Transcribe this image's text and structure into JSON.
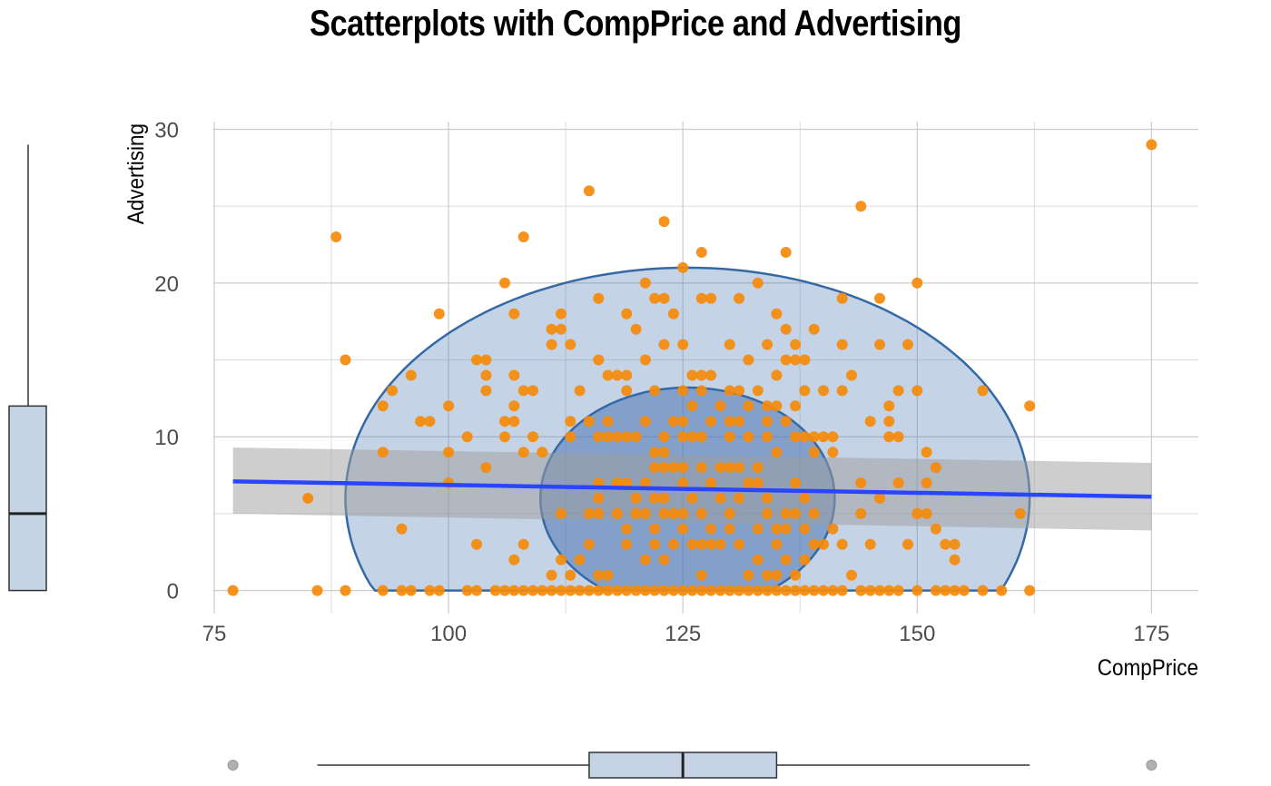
{
  "chart_data": {
    "type": "scatter",
    "title": "Scatterplots with CompPrice and Advertising",
    "xlabel": "CompPrice",
    "ylabel": "Advertising",
    "xlim": [
      72,
      180
    ],
    "ylim": [
      -1.5,
      30.5
    ],
    "xticks": [
      75,
      100,
      125,
      150,
      175
    ],
    "yticks": [
      0,
      10,
      20,
      30
    ],
    "grid": true,
    "colors": {
      "points": "#f58a0b",
      "regression_line": "#2a45ff",
      "confidence_band": "#9e9e9e",
      "ellipse_fill": "#4a77b2",
      "ellipse_stroke": "#3569a6",
      "boxplot_fill": "#c5d3e5"
    },
    "regression": {
      "x": [
        77,
        175
      ],
      "y": [
        7.1,
        6.1
      ],
      "band_lower": [
        5.0,
        3.9
      ],
      "band_upper": [
        9.3,
        8.3
      ]
    },
    "ellipse_outer": {
      "cx": 125.5,
      "cy": 6,
      "rx": 36.5,
      "ry": 15,
      "clip_min": 0
    },
    "ellipse_inner": {
      "cx": 125.5,
      "cy": 6,
      "rx": 15.7,
      "ry": 7.2,
      "clip_min": 0
    },
    "boxplot_x": {
      "min": 86,
      "q1": 115,
      "median": 125,
      "q3": 135,
      "max": 162,
      "outliers": [
        77,
        175
      ]
    },
    "boxplot_y": {
      "min": 0,
      "q1": 0,
      "median": 5,
      "q3": 12,
      "max": 29
    },
    "points": [
      [
        77,
        0
      ],
      [
        86,
        0
      ],
      [
        89,
        0
      ],
      [
        93,
        0
      ],
      [
        95,
        0
      ],
      [
        96,
        0
      ],
      [
        98,
        0
      ],
      [
        99,
        0
      ],
      [
        102,
        0
      ],
      [
        103,
        0
      ],
      [
        105,
        0
      ],
      [
        106,
        0
      ],
      [
        107,
        0
      ],
      [
        108,
        0
      ],
      [
        109,
        0
      ],
      [
        110,
        0
      ],
      [
        111,
        0
      ],
      [
        112,
        0
      ],
      [
        113,
        0
      ],
      [
        114,
        0
      ],
      [
        115,
        0
      ],
      [
        116,
        0
      ],
      [
        117,
        0
      ],
      [
        118,
        0
      ],
      [
        119,
        0
      ],
      [
        120,
        0
      ],
      [
        121,
        0
      ],
      [
        122,
        0
      ],
      [
        123,
        0
      ],
      [
        124,
        0
      ],
      [
        125,
        0
      ],
      [
        126,
        0
      ],
      [
        127,
        0
      ],
      [
        128,
        0
      ],
      [
        129,
        0
      ],
      [
        130,
        0
      ],
      [
        131,
        0
      ],
      [
        132,
        0
      ],
      [
        133,
        0
      ],
      [
        134,
        0
      ],
      [
        135,
        0
      ],
      [
        136,
        0
      ],
      [
        137,
        0
      ],
      [
        138,
        0
      ],
      [
        139,
        0
      ],
      [
        140,
        0
      ],
      [
        141,
        0
      ],
      [
        142,
        0
      ],
      [
        144,
        0
      ],
      [
        145,
        0
      ],
      [
        146,
        0
      ],
      [
        147,
        0
      ],
      [
        148,
        0
      ],
      [
        150,
        0
      ],
      [
        152,
        0
      ],
      [
        153,
        0
      ],
      [
        154,
        0
      ],
      [
        155,
        0
      ],
      [
        157,
        0
      ],
      [
        159,
        0
      ],
      [
        162,
        0
      ],
      [
        85,
        6
      ],
      [
        88,
        23
      ],
      [
        89,
        15
      ],
      [
        93,
        12
      ],
      [
        93,
        9
      ],
      [
        94,
        13
      ],
      [
        95,
        4
      ],
      [
        96,
        14
      ],
      [
        97,
        11
      ],
      [
        98,
        11
      ],
      [
        99,
        18
      ],
      [
        100,
        12
      ],
      [
        100,
        9
      ],
      [
        100,
        7
      ],
      [
        102,
        10
      ],
      [
        103,
        15
      ],
      [
        103,
        3
      ],
      [
        104,
        15
      ],
      [
        104,
        14
      ],
      [
        104,
        13
      ],
      [
        104,
        8
      ],
      [
        106,
        20
      ],
      [
        106,
        11
      ],
      [
        106,
        10
      ],
      [
        107,
        18
      ],
      [
        107,
        14
      ],
      [
        107,
        12
      ],
      [
        107,
        11
      ],
      [
        107,
        2
      ],
      [
        108,
        23
      ],
      [
        108,
        13
      ],
      [
        108,
        9
      ],
      [
        108,
        3
      ],
      [
        109,
        13
      ],
      [
        109,
        10
      ],
      [
        110,
        9
      ],
      [
        111,
        17
      ],
      [
        111,
        16
      ],
      [
        111,
        1
      ],
      [
        112,
        18
      ],
      [
        112,
        17
      ],
      [
        112,
        5
      ],
      [
        112,
        2
      ],
      [
        113,
        16
      ],
      [
        113,
        11
      ],
      [
        113,
        10
      ],
      [
        113,
        1
      ],
      [
        114,
        13
      ],
      [
        114,
        2
      ],
      [
        115,
        26
      ],
      [
        115,
        11
      ],
      [
        115,
        5
      ],
      [
        115,
        3
      ],
      [
        116,
        19
      ],
      [
        116,
        15
      ],
      [
        116,
        10
      ],
      [
        116,
        7
      ],
      [
        116,
        6
      ],
      [
        116,
        5
      ],
      [
        116,
        1
      ],
      [
        117,
        14
      ],
      [
        117,
        11
      ],
      [
        117,
        10
      ],
      [
        117,
        1
      ],
      [
        118,
        14
      ],
      [
        118,
        10
      ],
      [
        118,
        7
      ],
      [
        118,
        5
      ],
      [
        119,
        18
      ],
      [
        119,
        14
      ],
      [
        119,
        13
      ],
      [
        119,
        10
      ],
      [
        119,
        7
      ],
      [
        119,
        4
      ],
      [
        119,
        3
      ],
      [
        120,
        17
      ],
      [
        120,
        10
      ],
      [
        120,
        6
      ],
      [
        120,
        5
      ],
      [
        121,
        20
      ],
      [
        121,
        15
      ],
      [
        121,
        11
      ],
      [
        121,
        7
      ],
      [
        121,
        5
      ],
      [
        121,
        2
      ],
      [
        122,
        19
      ],
      [
        122,
        13
      ],
      [
        122,
        9
      ],
      [
        122,
        8
      ],
      [
        122,
        6
      ],
      [
        122,
        4
      ],
      [
        122,
        3
      ],
      [
        123,
        24
      ],
      [
        123,
        19
      ],
      [
        123,
        16
      ],
      [
        123,
        10
      ],
      [
        123,
        9
      ],
      [
        123,
        8
      ],
      [
        123,
        6
      ],
      [
        123,
        5
      ],
      [
        123,
        2
      ],
      [
        124,
        18
      ],
      [
        124,
        11
      ],
      [
        124,
        8
      ],
      [
        124,
        5
      ],
      [
        124,
        3
      ],
      [
        125,
        21
      ],
      [
        125,
        16
      ],
      [
        125,
        13
      ],
      [
        125,
        11
      ],
      [
        125,
        10
      ],
      [
        125,
        8
      ],
      [
        125,
        7
      ],
      [
        125,
        5
      ],
      [
        125,
        4
      ],
      [
        126,
        14
      ],
      [
        126,
        12
      ],
      [
        126,
        10
      ],
      [
        126,
        6
      ],
      [
        126,
        3
      ],
      [
        127,
        22
      ],
      [
        127,
        19
      ],
      [
        127,
        14
      ],
      [
        127,
        13
      ],
      [
        127,
        10
      ],
      [
        127,
        8
      ],
      [
        127,
        5
      ],
      [
        127,
        3
      ],
      [
        127,
        1
      ],
      [
        128,
        19
      ],
      [
        128,
        14
      ],
      [
        128,
        11
      ],
      [
        128,
        7
      ],
      [
        128,
        4
      ],
      [
        128,
        3
      ],
      [
        129,
        12
      ],
      [
        129,
        8
      ],
      [
        129,
        6
      ],
      [
        129,
        3
      ],
      [
        130,
        16
      ],
      [
        130,
        13
      ],
      [
        130,
        11
      ],
      [
        130,
        10
      ],
      [
        130,
        8
      ],
      [
        130,
        5
      ],
      [
        130,
        4
      ],
      [
        131,
        19
      ],
      [
        131,
        13
      ],
      [
        131,
        11
      ],
      [
        131,
        8
      ],
      [
        131,
        6
      ],
      [
        131,
        3
      ],
      [
        132,
        15
      ],
      [
        132,
        12
      ],
      [
        132,
        10
      ],
      [
        132,
        7
      ],
      [
        132,
        1
      ],
      [
        133,
        20
      ],
      [
        133,
        13
      ],
      [
        133,
        8
      ],
      [
        133,
        7
      ],
      [
        133,
        4
      ],
      [
        133,
        2
      ],
      [
        134,
        16
      ],
      [
        134,
        12
      ],
      [
        134,
        11
      ],
      [
        134,
        10
      ],
      [
        134,
        6
      ],
      [
        134,
        5
      ],
      [
        134,
        1
      ],
      [
        135,
        18
      ],
      [
        135,
        14
      ],
      [
        135,
        12
      ],
      [
        135,
        9
      ],
      [
        135,
        4
      ],
      [
        135,
        3
      ],
      [
        135,
        1
      ],
      [
        136,
        22
      ],
      [
        136,
        17
      ],
      [
        136,
        15
      ],
      [
        136,
        11
      ],
      [
        136,
        5
      ],
      [
        136,
        4
      ],
      [
        136,
        2
      ],
      [
        137,
        16
      ],
      [
        137,
        15
      ],
      [
        137,
        12
      ],
      [
        137,
        10
      ],
      [
        137,
        7
      ],
      [
        137,
        5
      ],
      [
        137,
        1
      ],
      [
        138,
        15
      ],
      [
        138,
        13
      ],
      [
        138,
        10
      ],
      [
        138,
        6
      ],
      [
        138,
        4
      ],
      [
        138,
        2
      ],
      [
        139,
        17
      ],
      [
        139,
        10
      ],
      [
        139,
        9
      ],
      [
        139,
        5
      ],
      [
        139,
        3
      ],
      [
        140,
        13
      ],
      [
        140,
        10
      ],
      [
        140,
        3
      ],
      [
        141,
        10
      ],
      [
        141,
        9
      ],
      [
        141,
        4
      ],
      [
        142,
        19
      ],
      [
        142,
        16
      ],
      [
        142,
        13
      ],
      [
        142,
        3
      ],
      [
        143,
        14
      ],
      [
        143,
        1
      ],
      [
        144,
        25
      ],
      [
        144,
        7
      ],
      [
        144,
        5
      ],
      [
        145,
        11
      ],
      [
        145,
        3
      ],
      [
        146,
        19
      ],
      [
        146,
        16
      ],
      [
        146,
        6
      ],
      [
        147,
        12
      ],
      [
        147,
        11
      ],
      [
        147,
        10
      ],
      [
        148,
        13
      ],
      [
        148,
        10
      ],
      [
        148,
        7
      ],
      [
        149,
        16
      ],
      [
        149,
        3
      ],
      [
        150,
        20
      ],
      [
        150,
        13
      ],
      [
        150,
        5
      ],
      [
        151,
        9
      ],
      [
        151,
        7
      ],
      [
        151,
        5
      ],
      [
        152,
        8
      ],
      [
        152,
        4
      ],
      [
        153,
        3
      ],
      [
        154,
        3
      ],
      [
        154,
        2
      ],
      [
        157,
        13
      ],
      [
        161,
        5
      ],
      [
        162,
        12
      ],
      [
        175,
        29
      ]
    ]
  }
}
